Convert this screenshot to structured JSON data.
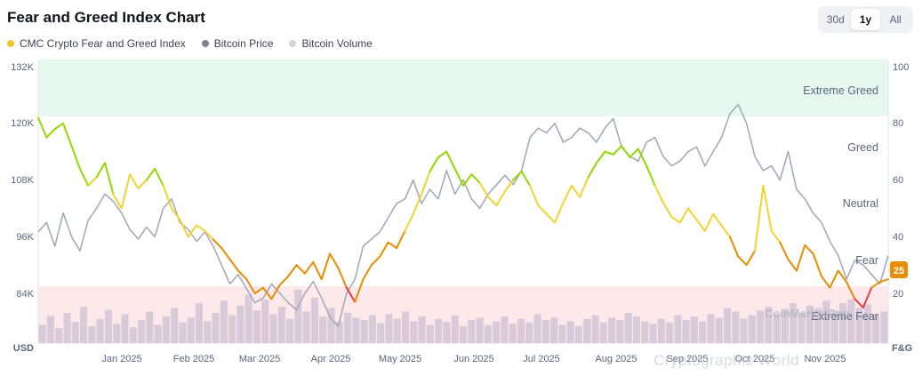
{
  "header": {
    "title": "Fear and Greed Index Chart",
    "range_options": [
      "30d",
      "1y",
      "All"
    ],
    "active_range": "1y"
  },
  "legend": [
    {
      "label": "CMC Crypto Fear and Greed Index",
      "color": "#f3c623"
    },
    {
      "label": "Bitcoin Price",
      "color": "#7a8394"
    },
    {
      "label": "Bitcoin Volume",
      "color": "#d1d4dc"
    }
  ],
  "watermark": "Cryptographic World",
  "logo_text": "CoinMarketCap",
  "chart_data": {
    "type": "line",
    "title": "Fear and Greed Index Chart",
    "x_tick_labels": [
      "Jan 2025",
      "Feb 2025",
      "Mar 2025",
      "Apr 2025",
      "May 2025",
      "Jun 2025",
      "Jul 2025",
      "Aug 2025",
      "Sep 2025",
      "Oct 2025",
      "Nov 2025"
    ],
    "left_axis": {
      "label": "USD",
      "ticks": [
        "132K",
        "120K",
        "108K",
        "96K",
        "84K"
      ],
      "ylim": [
        72000,
        132000
      ]
    },
    "right_axis": {
      "label": "F&G",
      "ticks": [
        "100",
        "80",
        "60",
        "40",
        "20"
      ],
      "ylim": [
        0,
        100
      ]
    },
    "zones": [
      {
        "label": "Extreme Greed",
        "from": 80,
        "to": 100,
        "color": "#e7f8f1"
      },
      {
        "label": "Greed",
        "from": 60,
        "to": 80
      },
      {
        "label": "Neutral",
        "from": 40,
        "to": 60
      },
      {
        "label": "Fear",
        "from": 20,
        "to": 40
      },
      {
        "label": "Extreme Fear",
        "from": 0,
        "to": 20,
        "color": "#fde9ea"
      }
    ],
    "current_value": "25",
    "series": [
      {
        "name": "CMC Crypto Fear and Greed Index",
        "axis": "right",
        "values": [
          82,
          75,
          78,
          80,
          72,
          64,
          58,
          61,
          66,
          55,
          50,
          62,
          57,
          60,
          64,
          58,
          50,
          46,
          40,
          44,
          42,
          39,
          36,
          32,
          28,
          25,
          20,
          22,
          18,
          23,
          26,
          30,
          27,
          31,
          25,
          34,
          29,
          22,
          17,
          25,
          30,
          33,
          38,
          36,
          42,
          48,
          55,
          63,
          68,
          70,
          64,
          58,
          62,
          59,
          54,
          51,
          56,
          60,
          63,
          58,
          51,
          48,
          45,
          52,
          58,
          54,
          61,
          66,
          70,
          69,
          72,
          68,
          71,
          65,
          58,
          52,
          47,
          45,
          50,
          46,
          42,
          48,
          44,
          40,
          33,
          30,
          35,
          58,
          42,
          38,
          32,
          28,
          37,
          34,
          26,
          22,
          28,
          24,
          18,
          15,
          22,
          24,
          25
        ]
      },
      {
        "name": "Bitcoin Price",
        "axis": "left",
        "values": [
          97000,
          99000,
          94000,
          101000,
          96000,
          93000,
          99500,
          102000,
          105000,
          103500,
          101000,
          97500,
          95500,
          98000,
          96000,
          102000,
          104000,
          99000,
          97500,
          95000,
          97000,
          94000,
          90000,
          86000,
          88000,
          85000,
          82000,
          83000,
          86000,
          84000,
          82000,
          80500,
          84000,
          86500,
          83000,
          79000,
          77000,
          84000,
          87000,
          94000,
          95500,
          97000,
          100000,
          103000,
          104000,
          108000,
          103000,
          106000,
          104000,
          110000,
          105000,
          108000,
          104000,
          102000,
          105000,
          107000,
          109000,
          107000,
          110000,
          117000,
          119000,
          118000,
          120000,
          116000,
          117000,
          119000,
          118000,
          116000,
          119000,
          121000,
          115000,
          113000,
          112000,
          116000,
          117000,
          113000,
          111000,
          112000,
          114000,
          115000,
          111000,
          114000,
          117000,
          122000,
          124000,
          120000,
          113000,
          110000,
          111000,
          108000,
          114000,
          106000,
          104000,
          101000,
          99000,
          95000,
          92000,
          87000,
          91000,
          90000,
          88000,
          86000,
          92000
        ]
      }
    ],
    "volume_series": {
      "name": "Bitcoin Volume",
      "values": [
        30,
        45,
        25,
        50,
        35,
        60,
        28,
        40,
        55,
        32,
        48,
        26,
        38,
        52,
        30,
        44,
        58,
        34,
        42,
        66,
        36,
        50,
        70,
        46,
        62,
        80,
        54,
        72,
        48,
        60,
        40,
        88,
        52,
        75,
        44,
        58,
        36,
        50,
        42,
        38,
        46,
        33,
        48,
        40,
        52,
        36,
        44,
        30,
        40,
        35,
        46,
        28,
        38,
        42,
        30,
        36,
        44,
        32,
        40,
        34,
        48,
        38,
        42,
        30,
        36,
        28,
        40,
        46,
        34,
        42,
        38,
        50,
        44,
        36,
        32,
        40,
        34,
        46,
        38,
        44,
        36,
        48,
        42,
        58,
        52,
        40,
        46,
        54,
        60,
        48,
        56,
        66,
        50,
        62,
        58,
        70,
        54,
        66,
        72,
        58,
        64,
        48,
        52
      ]
    }
  }
}
